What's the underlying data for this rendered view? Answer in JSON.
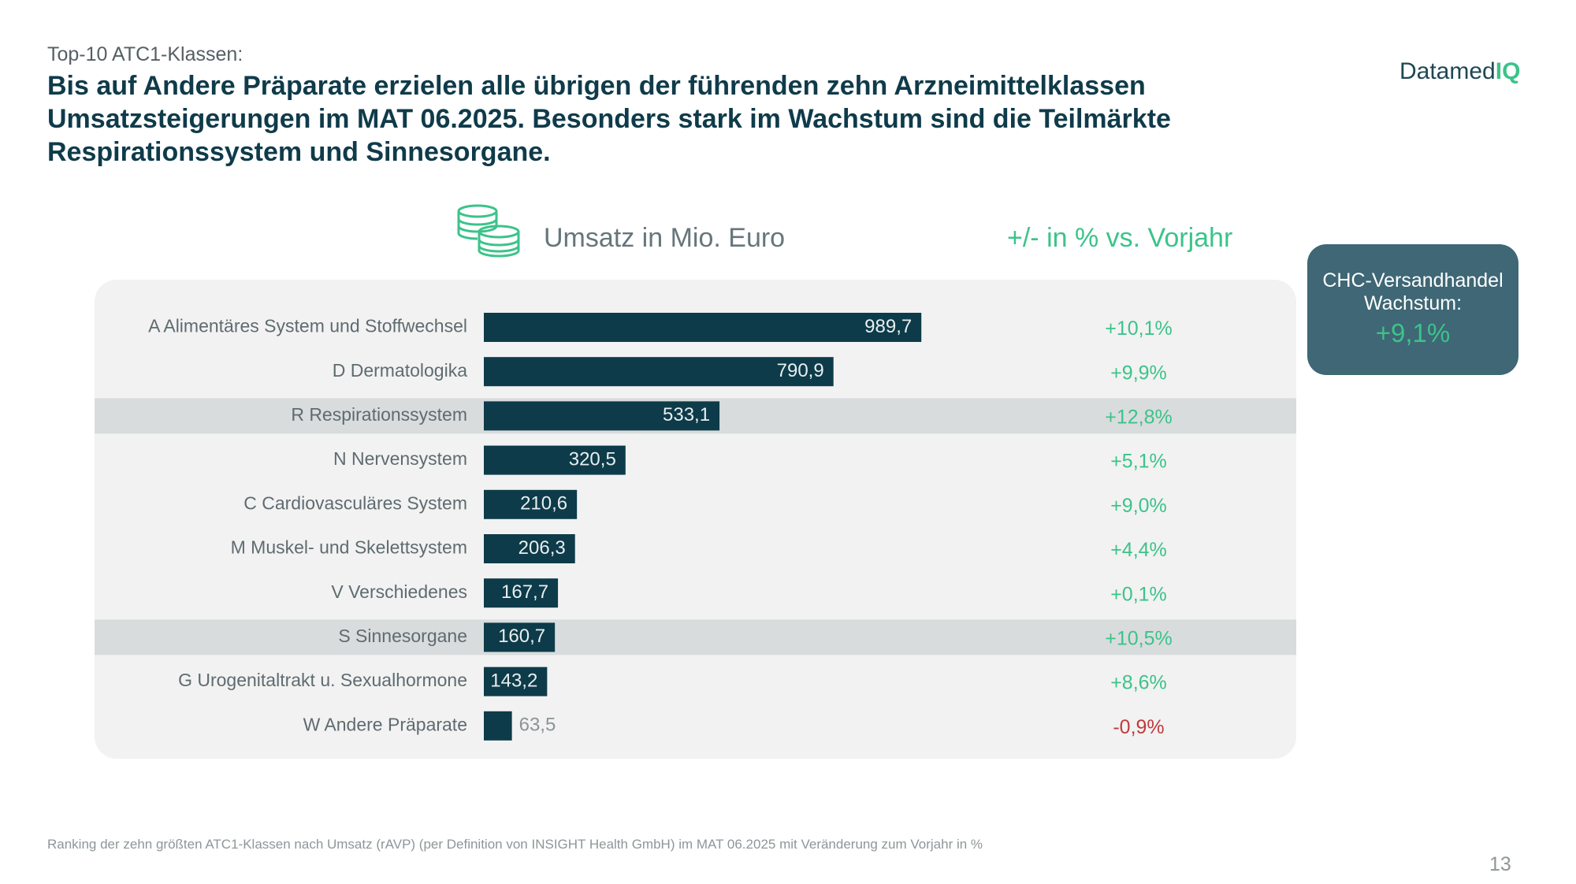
{
  "header": {
    "subtitle": "Top-10 ATC1-Klassen:",
    "headline": "Bis auf Andere Präparate erzielen alle übrigen der führenden zehn Arzneimittelklassen Umsatzsteigerungen im MAT 06.2025. Besonders stark im Wachstum sind die Teilmärkte Respirationssystem und Sinnesorgane."
  },
  "logo": {
    "text": "Datamed",
    "accent": "IQ"
  },
  "icons": {
    "coins": "coins-icon"
  },
  "columns": {
    "left": "Umsatz in Mio. Euro",
    "right": "+/- in % vs. Vorjahr"
  },
  "chc_box": {
    "label": "CHC-Versandhandel Wachstum:",
    "value": "+9,1%"
  },
  "chart_data": {
    "type": "bar",
    "orientation": "horizontal",
    "title": "Umsatz in Mio. Euro",
    "categories": [
      "A Alimentäres System und Stoffwechsel",
      "D Dermatologika",
      "R Respirationssystem",
      "N Nervensystem",
      "C Cardiovasculäres System",
      "M Muskel- und Skelettsystem",
      "V Verschiedenes",
      "S Sinnesorgane",
      "G Urogenitaltrakt u. Sexualhormone",
      "W Andere Präparate"
    ],
    "values": [
      989.7,
      790.9,
      533.1,
      320.5,
      210.6,
      206.3,
      167.7,
      160.7,
      143.2,
      63.5
    ],
    "value_labels": [
      "989,7",
      "790,9",
      "533,1",
      "320,5",
      "210,6",
      "206,3",
      "167,7",
      "160,7",
      "143,2",
      "63,5"
    ],
    "changes": [
      "+10,1%",
      "+9,9%",
      "+12,8%",
      "+5,1%",
      "+9,0%",
      "+4,4%",
      "+0,1%",
      "+10,5%",
      "+8,6%",
      "-0,9%"
    ],
    "change_label": "+/- in % vs. Vorjahr",
    "highlighted": [
      false,
      false,
      true,
      false,
      false,
      false,
      false,
      true,
      false,
      false
    ],
    "xlim": [
      0,
      1000
    ],
    "colors": {
      "bar": "#0d3b49",
      "highlight_row": "#d9dcdd",
      "positive": "#3cc38a",
      "negative": "#c23a3a",
      "category_text": "#5f6b70"
    }
  },
  "footer": {
    "note": "Ranking der zehn größten ATC1-Klassen nach Umsatz (rAVP)  (per Definition von INSIGHT Health GmbH) im MAT 06.2025 mit Veränderung zum Vorjahr in %",
    "page": "13"
  }
}
